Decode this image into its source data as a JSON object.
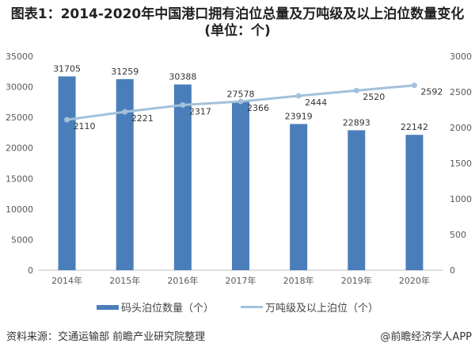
{
  "title": "图表1：2014-2020年中国港口拥有泊位总量及万吨级及以上泊位数量变化(单位：个)",
  "source": "资料来源：交通运输部 前瞻产业研究院整理",
  "credit": "@前瞻经济学人APP",
  "chart_data": {
    "type": "bar",
    "categories": [
      "2014年",
      "2015年",
      "2016年",
      "2017年",
      "2018年",
      "2019年",
      "2020年"
    ],
    "series": [
      {
        "name": "码头泊位数量（个）",
        "type": "bar",
        "axis": "left",
        "color": "#4a7ebb",
        "values": [
          31705,
          31259,
          30388,
          27578,
          23919,
          22893,
          22142
        ]
      },
      {
        "name": "万吨级及以上泊位（个）",
        "type": "line",
        "axis": "right",
        "color": "#a3c1da",
        "values": [
          2110,
          2221,
          2317,
          2366,
          2444,
          2520,
          2592
        ]
      }
    ],
    "ylim_left": [
      0,
      35000
    ],
    "yticks_left": [
      0,
      5000,
      10000,
      15000,
      20000,
      25000,
      30000,
      35000
    ],
    "ylim_right": [
      0,
      3000
    ],
    "yticks_right": [
      0,
      500,
      1000,
      1500,
      2000,
      2500,
      3000
    ],
    "grid": false,
    "legend": "bottom"
  }
}
